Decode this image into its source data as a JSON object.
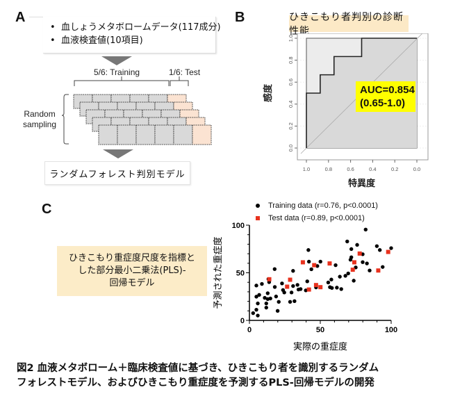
{
  "panel_a": {
    "letter": "A",
    "inputs": [
      "血しょうメタボロームデータ(117成分)",
      "血液検査値(10項目)"
    ],
    "bullet": "•",
    "training_label": "5/6: Training",
    "test_label": "1/6: Test",
    "random_sampling_label": [
      "Random",
      "sampling"
    ],
    "model_label": "ランダムフォレスト判別モデル",
    "colors": {
      "train_cell": "#d9d9d9",
      "test_cell": "#fbe3d2",
      "arrow": "#777777"
    }
  },
  "panel_b": {
    "letter": "B",
    "title": "ひきこもり者判別の診断性能",
    "auc_line1": "AUC=0.854",
    "auc_line2": "(0.65-1.0)",
    "colors": {
      "title_bg": "#fce9c6",
      "auc_bg": "#ffff00"
    }
  },
  "panel_c": {
    "letter": "C",
    "description": [
      "ひきこもり重症度尺度を指標と",
      "した部分最小二乗法(PLS)-",
      "回帰モデル"
    ],
    "colors": {
      "training": "#000000",
      "test": "#e8321e",
      "box_bg": "#fcecc8"
    }
  },
  "caption": {
    "line1": "図2 血液メタボローム＋臨床検査値に基づき、ひきこもり者を識別するランダム",
    "line2": "フォレストモデル、およびひきこもり重症度を予測するPLS-回帰モデルの開発"
  },
  "chart_data": [
    {
      "type": "line",
      "title": "ひきこもり者判別の診断性能",
      "xlabel": "特異度",
      "ylabel": "感度",
      "xlim": [
        1.0,
        0.0
      ],
      "ylim": [
        0.0,
        1.0
      ],
      "xticks": [
        "1.0",
        "0.8",
        "0.6",
        "0.4",
        "0.2",
        "0.0"
      ],
      "yticks": [
        "0.0",
        "0.2",
        "0.4",
        "0.6",
        "0.8",
        "1.0"
      ],
      "series": [
        {
          "name": "ROC",
          "x": [
            1.0,
            1.0,
            0.875,
            0.875,
            0.75,
            0.75,
            0.5,
            0.5,
            0.0
          ],
          "y": [
            0.0,
            0.5,
            0.5,
            0.667,
            0.667,
            0.833,
            0.833,
            1.0,
            1.0
          ]
        }
      ],
      "annotation": "AUC=0.854 (0.65-1.0)"
    },
    {
      "type": "scatter",
      "xlabel": "実際の重症度",
      "ylabel": "予測された重症度",
      "xlim": [
        0,
        100
      ],
      "ylim": [
        0,
        100
      ],
      "xticks": [
        "0",
        "50",
        "100"
      ],
      "yticks": [
        "0",
        "50",
        "100"
      ],
      "legend_position": "top",
      "series": [
        {
          "name": "Training data (r=0.76, p<0.0001)",
          "marker": "circle",
          "points": [
            [
              2.6,
              7.6
            ],
            [
              4.9,
              11.2
            ],
            [
              5.9,
              5.1
            ],
            [
              4.9,
              36.6
            ],
            [
              4.9,
              24.9
            ],
            [
              5.9,
              17.8
            ],
            [
              6.9,
              26.8
            ],
            [
              8.8,
              38.3
            ],
            [
              10.8,
              23.7
            ],
            [
              11.9,
              17.8
            ],
            [
              11.9,
              13.4
            ],
            [
              12.9,
              28.5
            ],
            [
              13.4,
              43.4
            ],
            [
              13.9,
              40.2
            ],
            [
              12.9,
              22.4
            ],
            [
              14.8,
              23
            ],
            [
              17.8,
              53.9
            ],
            [
              17.9,
              35.1
            ],
            [
              18.8,
              25.1
            ],
            [
              19.9,
              10
            ],
            [
              20.7,
              19.5
            ],
            [
              23,
              38.8
            ],
            [
              23.7,
              31.9
            ],
            [
              24.6,
              29.3
            ],
            [
              26.6,
              35.4
            ],
            [
              28.7,
              19.5
            ],
            [
              29.7,
              29.3
            ],
            [
              30.8,
              52
            ],
            [
              30.8,
              36.1
            ],
            [
              31.8,
              20.2
            ],
            [
              33.9,
              37.3
            ],
            [
              34.6,
              32.4
            ],
            [
              36.1,
              32.9
            ],
            [
              39.8,
              31.5
            ],
            [
              40.8,
              41
            ],
            [
              41.6,
              73.9
            ],
            [
              42,
              61.7
            ],
            [
              43.7,
              53.7
            ],
            [
              47,
              34.6
            ],
            [
              47.9,
              57.1
            ],
            [
              50.1,
              61.7
            ],
            [
              55.6,
              39.8
            ],
            [
              56.8,
              34.9
            ],
            [
              57.8,
              42.9
            ],
            [
              58.2,
              34.1
            ],
            [
              60.8,
              58
            ],
            [
              61.7,
              34.4
            ],
            [
              63.8,
              45.9
            ],
            [
              64.8,
              32.9
            ],
            [
              67.7,
              46.8
            ],
            [
              69,
              82.9
            ],
            [
              69.7,
              49.3
            ],
            [
              71.3,
              63.7
            ],
            [
              71.9,
              66.3
            ],
            [
              71.9,
              74.9
            ],
            [
              73.6,
              41.7
            ],
            [
              75,
              55.6
            ],
            [
              76,
              79.3
            ],
            [
              79.9,
              69.5
            ],
            [
              79.9,
              61.2
            ],
            [
              82,
              95.4
            ],
            [
              82.9,
              59.8
            ],
            [
              84.8,
              52.4
            ],
            [
              89.9,
              78
            ],
            [
              92,
              73.9
            ],
            [
              94,
              56.1
            ],
            [
              100,
              75.9
            ]
          ]
        },
        {
          "name": "Test data (r=0.89, p<0.0001)",
          "marker": "square",
          "points": [
            [
              14,
              43.2
            ],
            [
              26.6,
              35.4
            ],
            [
              28.7,
              42.7
            ],
            [
              37.7,
              61
            ],
            [
              42,
              32.4
            ],
            [
              45.7,
              58
            ],
            [
              47,
              37.1
            ],
            [
              50.1,
              34.9
            ],
            [
              56.6,
              59.8
            ],
            [
              72.9,
              53.2
            ],
            [
              74,
              61
            ],
            [
              77.8,
              70.2
            ],
            [
              90.9,
              52.4
            ],
            [
              97.9,
              71.9
            ]
          ]
        }
      ]
    }
  ]
}
